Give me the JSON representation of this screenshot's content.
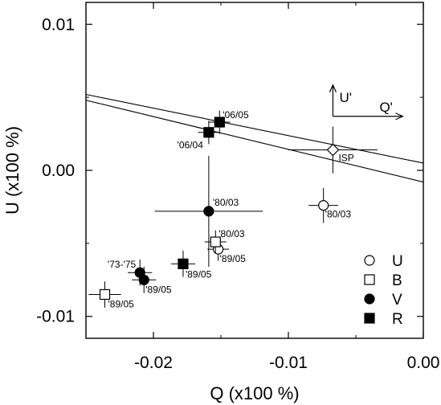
{
  "chart_data": {
    "type": "scatter",
    "xlabel": "Q (x100 %)",
    "ylabel": "U (x100 %)",
    "xlim": [
      -0.025,
      0.0
    ],
    "ylim": [
      -0.0115,
      0.0115
    ],
    "xticks": [
      {
        "value": -0.02,
        "label": "-0.02"
      },
      {
        "value": -0.01,
        "label": "-0.01"
      },
      {
        "value": 0.0,
        "label": "0.00"
      }
    ],
    "yticks": [
      {
        "value": -0.01,
        "label": "-0.01"
      },
      {
        "value": 0.0,
        "label": "0.00"
      },
      {
        "value": 0.01,
        "label": "0.01"
      }
    ],
    "legend_position": "bottom-right",
    "series": [
      {
        "name": "U",
        "marker": "open-circle",
        "points": [
          {
            "x": -0.0074,
            "y": -0.0024,
            "xerr": 0.0011,
            "yerr": 0.0012,
            "label": "'80/03"
          },
          {
            "x": -0.0152,
            "y": -0.0054,
            "xerr": 0.0008,
            "yerr": 0.0008,
            "label": "'89/05"
          }
        ]
      },
      {
        "name": "B",
        "marker": "open-square",
        "points": [
          {
            "x": -0.0154,
            "y": -0.0049,
            "xerr": 0.0008,
            "yerr": 0.0008,
            "label": "'80/03"
          },
          {
            "x": -0.0236,
            "y": -0.0085,
            "xerr": 0.0012,
            "yerr": 0.0009,
            "label": "'89/05"
          }
        ]
      },
      {
        "name": "V",
        "marker": "filled-circle",
        "points": [
          {
            "x": -0.0159,
            "y": -0.0028,
            "xerr": 0.004,
            "yerr": 0.0038,
            "label": "'80/03"
          },
          {
            "x": -0.021,
            "y": -0.007,
            "xerr": 0.0009,
            "yerr": 0.0009,
            "label": "'73-'75"
          },
          {
            "x": -0.0207,
            "y": -0.0075,
            "xerr": 0.0009,
            "yerr": 0.0009,
            "label": "'89/05"
          }
        ]
      },
      {
        "name": "R",
        "marker": "filled-square",
        "points": [
          {
            "x": -0.0151,
            "y": 0.0033,
            "xerr": 0.0008,
            "yerr": 0.0008,
            "label": "'06/05"
          },
          {
            "x": -0.0159,
            "y": 0.0026,
            "xerr": 0.0008,
            "yerr": 0.0008,
            "label": "'06/04"
          },
          {
            "x": -0.0178,
            "y": -0.0064,
            "xerr": 0.0009,
            "yerr": 0.0009,
            "label": "'89/05"
          }
        ]
      }
    ],
    "isp": {
      "label": "ISP",
      "marker": "open-diamond",
      "x": -0.0067,
      "y": 0.0014,
      "xerr": 0.0033,
      "yerr": 0.0016
    },
    "lines": [
      {
        "x1": -0.025,
        "y1": 0.0052,
        "x2": 0.0,
        "y2": 0.0005
      },
      {
        "x1": -0.025,
        "y1": 0.0048,
        "x2": 0.0,
        "y2": -0.0008
      }
    ],
    "axes_arrows": {
      "q_label": "Q'",
      "u_label": "U'"
    }
  }
}
